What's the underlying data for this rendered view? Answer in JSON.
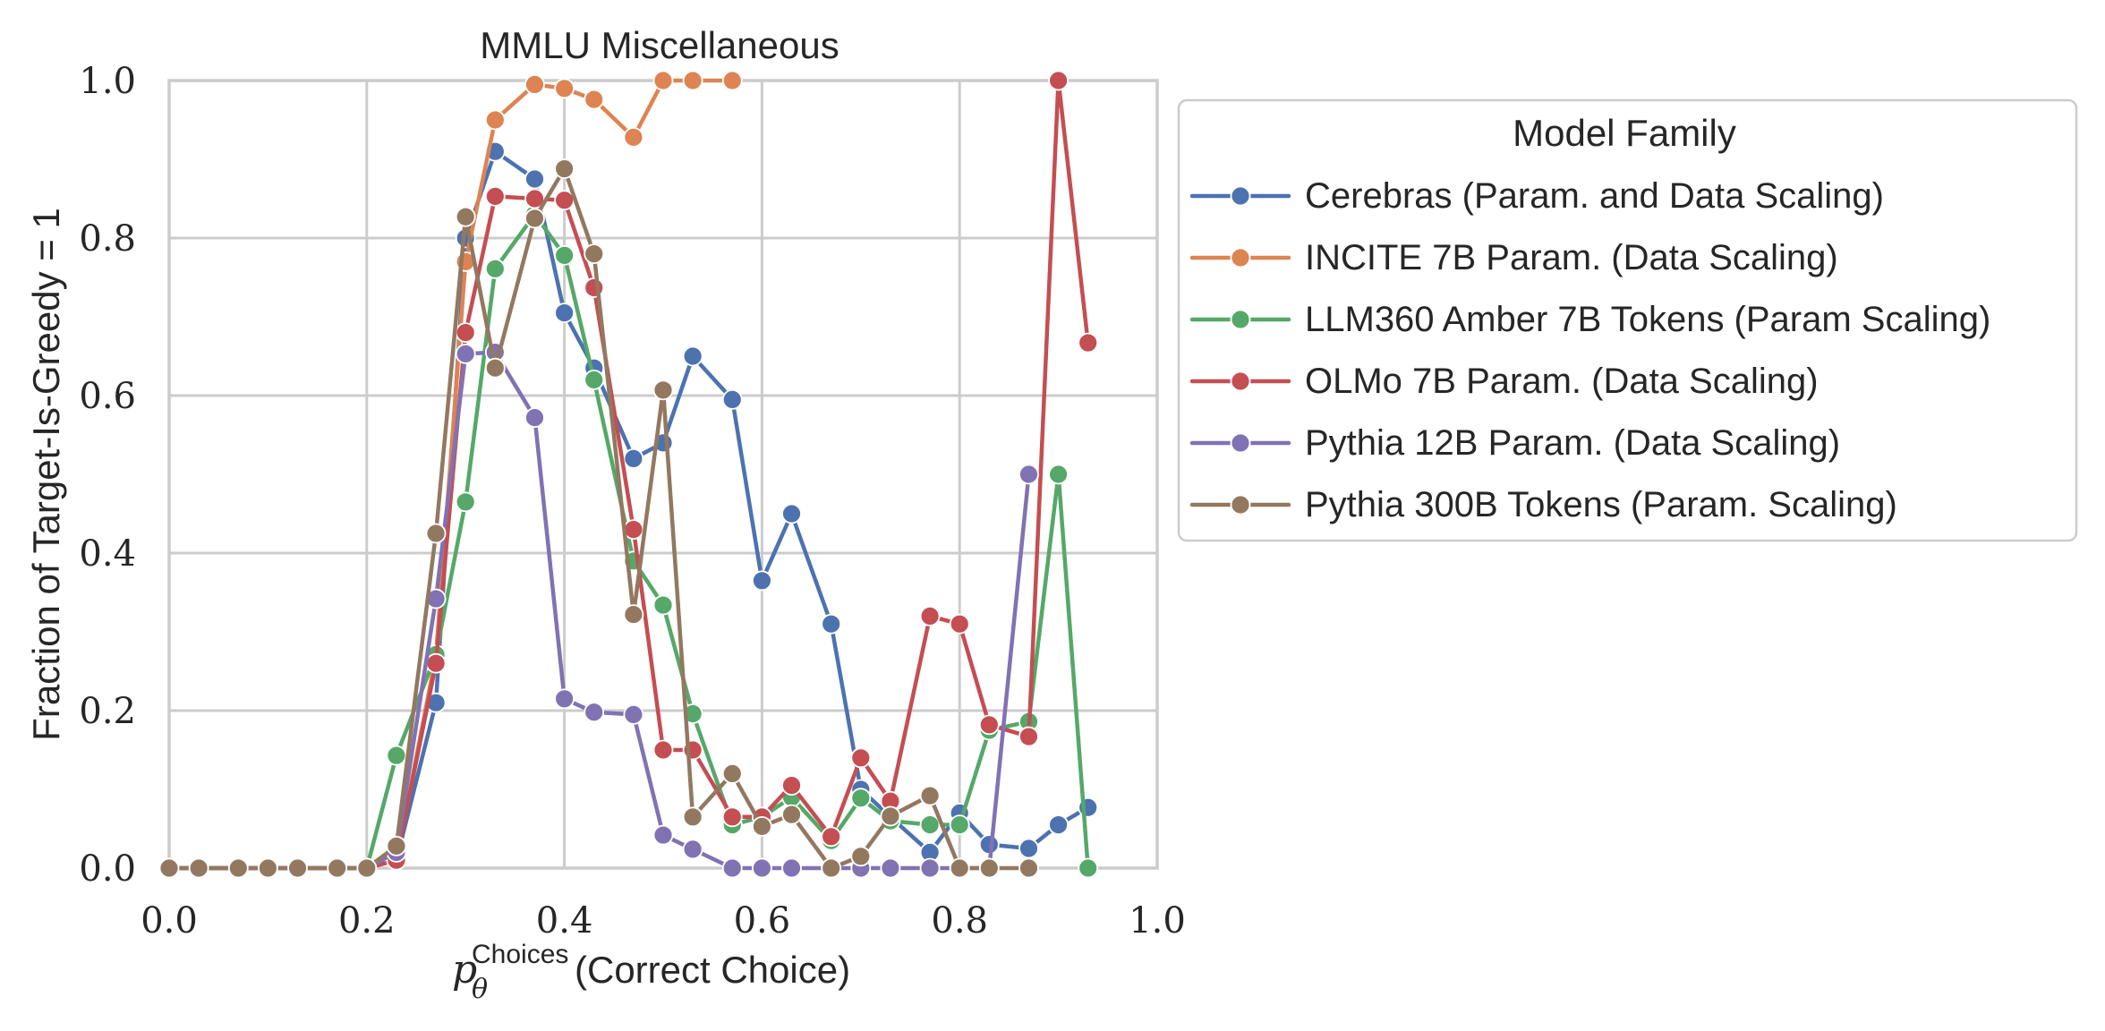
{
  "chart_data": {
    "type": "line",
    "title": "MMLU Miscellaneous",
    "xlabel": {
      "base": "p",
      "sub": "θ",
      "sup": "Choices",
      "rest": "(Correct Choice)"
    },
    "ylabel": "Fraction of Target-Is-Greedy = 1",
    "xlim": [
      0,
      1
    ],
    "ylim": [
      0,
      1
    ],
    "xticks": [
      "0.0",
      "0.2",
      "0.4",
      "0.6",
      "0.8",
      "1.0"
    ],
    "yticks": [
      "0.0",
      "0.2",
      "0.4",
      "0.6",
      "0.8",
      "1.0"
    ],
    "grid": true,
    "legend": {
      "title": "Model Family",
      "placement": "outside right"
    },
    "series": [
      {
        "name": "Cerebras (Param. and Data Scaling)",
        "color": "#4C72B0",
        "x": [
          0,
          0.03,
          0.07,
          0.1,
          0.13,
          0.17,
          0.2,
          0.23,
          0.27,
          0.3,
          0.33,
          0.37,
          0.4,
          0.43,
          0.47,
          0.5,
          0.53,
          0.57,
          0.6,
          0.63,
          0.67,
          0.7,
          0.73,
          0.77,
          0.8,
          0.83,
          0.87,
          0.9,
          0.93
        ],
        "y": [
          0,
          0,
          0,
          0,
          0,
          0,
          0,
          0.01,
          0.21,
          0.8,
          0.91,
          0.875,
          0.705,
          0.635,
          0.52,
          0.54,
          0.65,
          0.595,
          0.365,
          0.45,
          0.31,
          0.1,
          0.065,
          0.02,
          0.07,
          0.03,
          0.025,
          0.055,
          0.077
        ]
      },
      {
        "name": "INCITE 7B Param. (Data Scaling)",
        "color": "#DD8452",
        "x": [
          0,
          0.03,
          0.07,
          0.1,
          0.13,
          0.17,
          0.2,
          0.23,
          0.27,
          0.3,
          0.33,
          0.37,
          0.4,
          0.43,
          0.47,
          0.5,
          0.53,
          0.57
        ],
        "y": [
          0,
          0,
          0,
          0,
          0,
          0,
          0,
          0.01,
          0.27,
          0.77,
          0.95,
          0.995,
          0.99,
          0.976,
          0.928,
          1.0,
          1.0,
          1.0
        ]
      },
      {
        "name": "LLM360 Amber 7B Tokens (Param Scaling)",
        "color": "#55A868",
        "x": [
          0,
          0.03,
          0.07,
          0.1,
          0.13,
          0.17,
          0.2,
          0.23,
          0.27,
          0.3,
          0.33,
          0.37,
          0.4,
          0.43,
          0.47,
          0.5,
          0.53,
          0.57,
          0.6,
          0.63,
          0.67,
          0.7,
          0.73,
          0.77,
          0.8,
          0.83,
          0.87,
          0.9,
          0.93
        ],
        "y": [
          0,
          0,
          0,
          0,
          0,
          0,
          0,
          0.143,
          0.271,
          0.465,
          0.761,
          0.83,
          0.778,
          0.62,
          0.39,
          0.334,
          0.196,
          0.055,
          0.065,
          0.09,
          0.035,
          0.089,
          0.06,
          0.055,
          0.055,
          0.175,
          0.186,
          0.5,
          0.0
        ]
      },
      {
        "name": "OLMo 7B Param. (Data Scaling)",
        "color": "#C44E52",
        "x": [
          0,
          0.03,
          0.07,
          0.1,
          0.13,
          0.17,
          0.2,
          0.23,
          0.27,
          0.3,
          0.33,
          0.37,
          0.4,
          0.43,
          0.47,
          0.5,
          0.53,
          0.57,
          0.6,
          0.63,
          0.67,
          0.7,
          0.73,
          0.77,
          0.8,
          0.83,
          0.87,
          0.9,
          0.93
        ],
        "y": [
          0,
          0,
          0,
          0,
          0,
          0,
          0,
          0.01,
          0.26,
          0.68,
          0.853,
          0.85,
          0.848,
          0.737,
          0.43,
          0.15,
          0.15,
          0.065,
          0.065,
          0.105,
          0.04,
          0.14,
          0.085,
          0.32,
          0.31,
          0.182,
          0.167,
          1.0,
          0.667
        ]
      },
      {
        "name": "Pythia 12B Param. (Data Scaling)",
        "color": "#8172B3",
        "x": [
          0,
          0.03,
          0.07,
          0.1,
          0.13,
          0.17,
          0.2,
          0.23,
          0.27,
          0.3,
          0.33,
          0.37,
          0.4,
          0.43,
          0.47,
          0.5,
          0.53,
          0.57,
          0.6,
          0.63,
          0.67,
          0.7,
          0.73,
          0.77,
          0.8,
          0.83,
          0.87
        ],
        "y": [
          0,
          0,
          0,
          0,
          0,
          0,
          0,
          0.02,
          0.342,
          0.653,
          0.655,
          0.572,
          0.215,
          0.198,
          0.195,
          0.042,
          0.024,
          0,
          0,
          0,
          0,
          0,
          0,
          0,
          0,
          0,
          0.5
        ]
      },
      {
        "name": "Pythia 300B Tokens (Param. Scaling)",
        "color": "#937860",
        "x": [
          0,
          0.03,
          0.07,
          0.1,
          0.13,
          0.17,
          0.2,
          0.23,
          0.27,
          0.3,
          0.33,
          0.37,
          0.4,
          0.43,
          0.47,
          0.5,
          0.53,
          0.57,
          0.6,
          0.63,
          0.67,
          0.7,
          0.73,
          0.77,
          0.8,
          0.83,
          0.87
        ],
        "y": [
          0,
          0,
          0,
          0,
          0,
          0,
          0,
          0.028,
          0.425,
          0.827,
          0.635,
          0.825,
          0.888,
          0.78,
          0.322,
          0.607,
          0.065,
          0.12,
          0.053,
          0.068,
          0,
          0.015,
          0.066,
          0.092,
          0,
          0,
          0
        ]
      }
    ]
  }
}
